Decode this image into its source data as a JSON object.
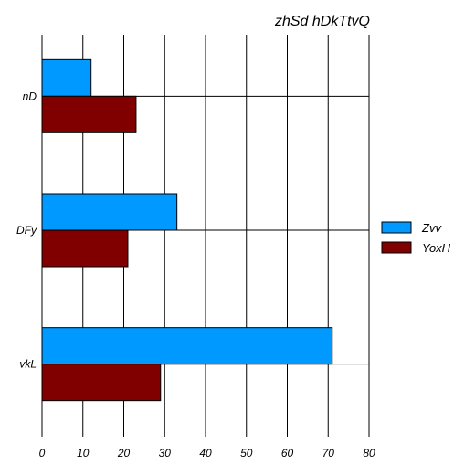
{
  "chart_data": {
    "type": "bar",
    "orientation": "horizontal",
    "title": "zhSd hDkTtvQ",
    "xlabel": "",
    "ylabel": "",
    "categories": [
      "nD",
      "DFy",
      "vkL"
    ],
    "series": [
      {
        "name": "Zvv",
        "color": "#0099ff",
        "values": [
          12,
          33,
          71
        ]
      },
      {
        "name": "YoxH",
        "color": "#800000",
        "values": [
          23,
          21,
          29
        ]
      }
    ],
    "xlim": [
      0,
      80
    ],
    "xticks": [
      0,
      10,
      20,
      30,
      40,
      50,
      60,
      70,
      80
    ],
    "grid": "vertical",
    "legend_position": "right"
  }
}
